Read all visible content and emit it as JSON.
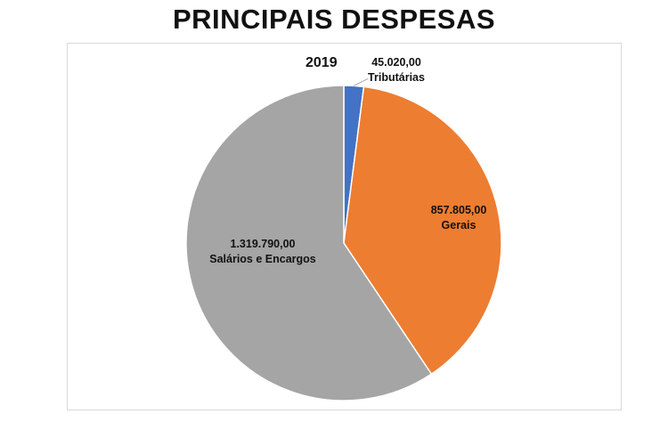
{
  "title": "PRINCIPAIS DESPESAS",
  "chart_data": {
    "type": "pie",
    "subtitle": "2019",
    "legend": "none",
    "slices": [
      {
        "label": "Tributárias",
        "value": 45020.0,
        "value_text": "45.020,00",
        "color": "#4472c4"
      },
      {
        "label": "Gerais",
        "value": 857805.0,
        "value_text": "857.805,00",
        "color": "#ed7d31"
      },
      {
        "label": "Salários e Encargos",
        "value": 1319790.0,
        "value_text": "1.319.790,00",
        "color": "#a5a5a5"
      }
    ]
  }
}
